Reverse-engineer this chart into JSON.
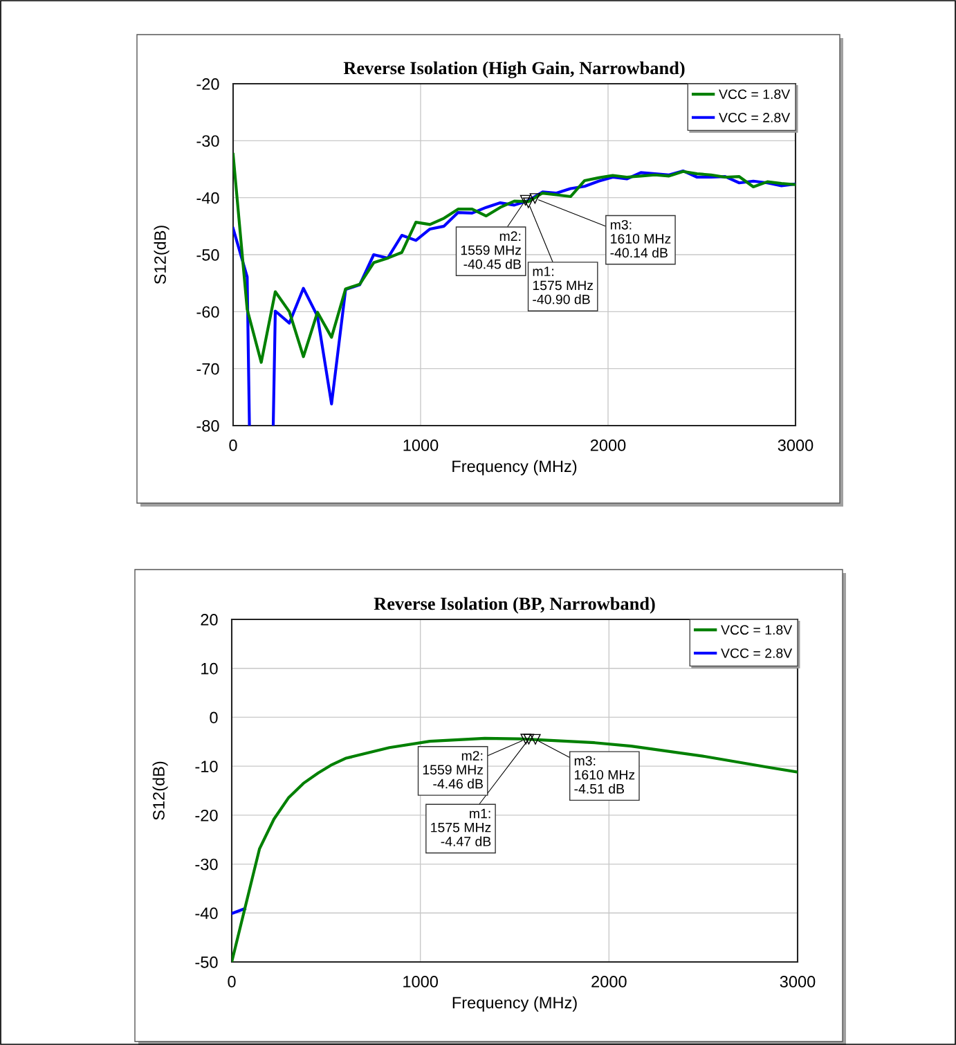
{
  "chart_data": [
    {
      "type": "line",
      "title": "Reverse Isolation (High Gain, Narrowband)",
      "xlabel": "Frequency (MHz)",
      "ylabel": "S12(dB)",
      "xlim": [
        0,
        3000
      ],
      "xticks": [
        0,
        1000,
        2000,
        3000
      ],
      "ylim": [
        -80,
        -20
      ],
      "yticks": [
        -80,
        -70,
        -60,
        -50,
        -40,
        -30,
        -20
      ],
      "grid": true,
      "legend": "top right",
      "marker": "none",
      "line_style": "solid",
      "series": [
        {
          "name": "VCC = 1.8V",
          "color": "#008000",
          "x": [
            0,
            75,
            150,
            225,
            300,
            375,
            450,
            525,
            600,
            675,
            750,
            825,
            900,
            975,
            1050,
            1125,
            1200,
            1275,
            1350,
            1425,
            1500,
            1575,
            1650,
            1725,
            1800,
            1875,
            1950,
            2025,
            2100,
            2175,
            2250,
            2325,
            2400,
            2475,
            2550,
            2625,
            2700,
            2775,
            2850,
            2925,
            3000
          ],
          "values": [
            -32.4,
            -59.6,
            -68.9,
            -56.5,
            -60.0,
            -67.9,
            -60.1,
            -64.5,
            -56.0,
            -55.2,
            -51.4,
            -50.6,
            -49.6,
            -44.3,
            -44.7,
            -43.6,
            -42.0,
            -42.0,
            -43.2,
            -41.7,
            -40.6,
            -40.7,
            -39.2,
            -39.5,
            -39.8,
            -37.0,
            -36.5,
            -36.1,
            -36.4,
            -36.2,
            -36.0,
            -36.2,
            -35.4,
            -35.8,
            -36.0,
            -36.4,
            -36.3,
            -38.1,
            -37.2,
            -37.5,
            -37.7
          ]
        },
        {
          "name": "VCC = 2.8V",
          "color": "#0000ff",
          "x": [
            0,
            75,
            87,
            150,
            214,
            225,
            300,
            375,
            450,
            525,
            600,
            675,
            750,
            825,
            900,
            975,
            1050,
            1125,
            1200,
            1275,
            1350,
            1425,
            1500,
            1575,
            1650,
            1725,
            1800,
            1875,
            1950,
            2025,
            2100,
            2175,
            2250,
            2325,
            2400,
            2475,
            2550,
            2625,
            2700,
            2775,
            2850,
            2925,
            3000
          ],
          "values": [
            -45.4,
            -53.9,
            -80,
            null,
            -80,
            -59.9,
            -62.0,
            -55.9,
            -60.8,
            -76.2,
            -56.1,
            -55.3,
            -50.0,
            -50.6,
            -46.6,
            -47.5,
            -45.5,
            -45.0,
            -42.6,
            -42.7,
            -41.7,
            -40.9,
            -41.3,
            -40.5,
            -39.0,
            -39.2,
            -38.4,
            -38.0,
            -37.1,
            -36.4,
            -36.7,
            -35.6,
            -35.8,
            -36.0,
            -35.3,
            -36.4,
            -36.4,
            -36.3,
            -37.4,
            -37.1,
            -37.4,
            -37.9,
            -37.6
          ]
        }
      ],
      "annotations": [
        {
          "text": "m1:\n1575 MHz\n-40.90 dB",
          "x": 1575,
          "y": -40.9
        },
        {
          "text": "m2:\n1559 MHz\n-40.45 dB",
          "x": 1559,
          "y": -40.45
        },
        {
          "text": "m3:\n1610 MHz\n-40.14 dB",
          "x": 1610,
          "y": -40.14
        }
      ]
    },
    {
      "type": "line",
      "title": "Reverse Isolation (BP, Narrowband)",
      "xlabel": "Frequency (MHz)",
      "ylabel": "S12(dB)",
      "xlim": [
        0,
        3000
      ],
      "xticks": [
        0,
        1000,
        2000,
        3000
      ],
      "ylim": [
        -50,
        20
      ],
      "yticks": [
        -50,
        -40,
        -30,
        -20,
        -10,
        0,
        10,
        20
      ],
      "grid": true,
      "legend": "top right",
      "marker": "none",
      "line_style": "solid",
      "series": [
        {
          "name": "VCC = 1.8V",
          "color": "#008000",
          "x": [
            0,
            147,
            224,
            302,
            380,
            458,
            526,
            603,
            836,
            1050,
            1341,
            1525,
            1924,
            2118,
            2507,
            2856,
            3000
          ],
          "values": [
            -50,
            -26.9,
            -20.8,
            -16.4,
            -13.5,
            -11.4,
            -9.8,
            -8.4,
            -6.2,
            -4.9,
            -4.3,
            -4.4,
            -5.2,
            -5.9,
            -8.0,
            -10.3,
            -11.2
          ]
        },
        {
          "name": "VCC = 2.8V",
          "color": "#0000ff",
          "x": [
            0,
            69
          ],
          "values": [
            -40.1,
            -39.1
          ]
        }
      ],
      "annotations": [
        {
          "text": "m1:\n1575 MHz\n-4.47 dB",
          "x": 1575,
          "y": -4.47
        },
        {
          "text": "m2:\n1559 MHz\n-4.46 dB",
          "x": 1559,
          "y": -4.46
        },
        {
          "text": "m3:\n1610 MHz\n-4.51 dB",
          "x": 1610,
          "y": -4.51
        }
      ]
    }
  ]
}
